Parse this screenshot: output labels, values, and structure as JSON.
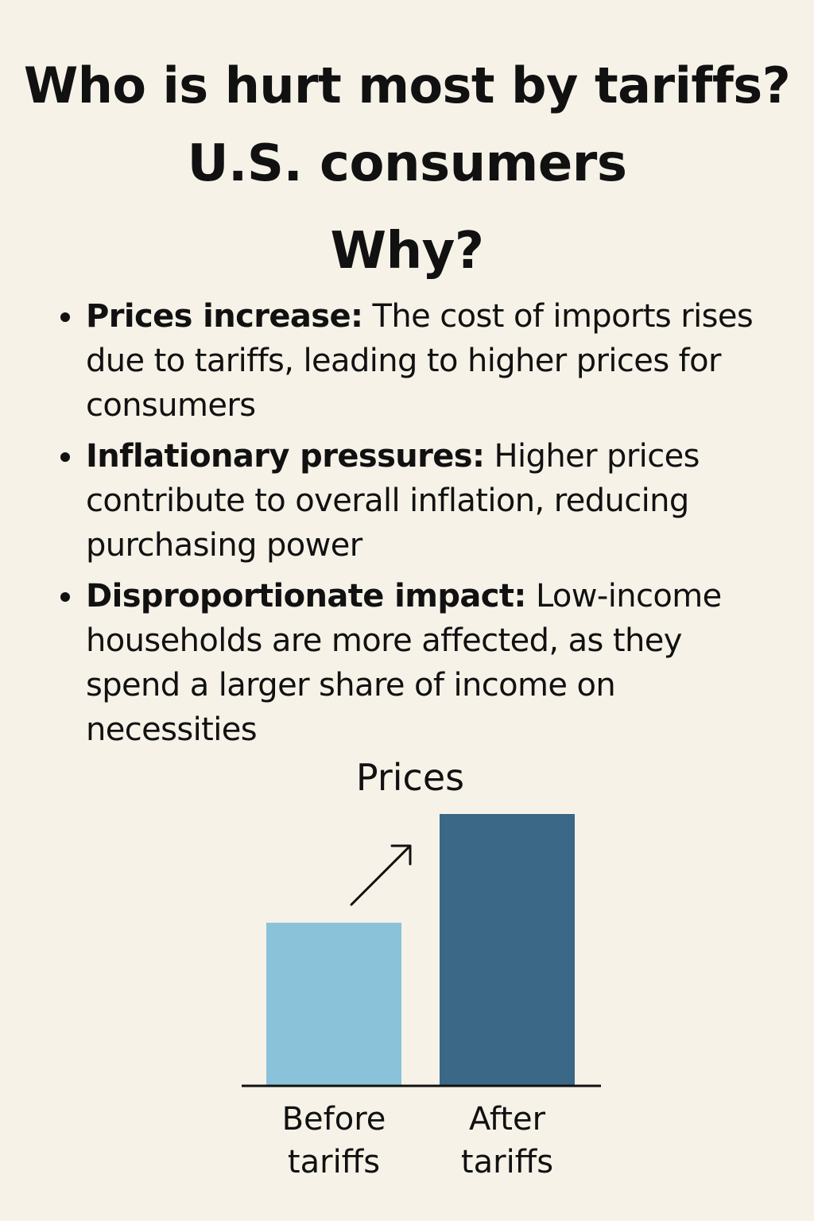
{
  "header": {
    "title": "Who is hurt most by tariffs?",
    "subtitle": "U.S. consumers",
    "why": "Why?"
  },
  "bullets": [
    {
      "heading": "Prices increase:",
      "text": "The cost of imports rises due to tariffs, leading to higher prices for consumers"
    },
    {
      "heading": "Inflationary pressures:",
      "text": "Higher prices contribute to overall inflation, reducing purchasing power"
    },
    {
      "heading": "Disproportionate impact:",
      "text": "Low-income households are more affected, as they spend a larger share of income on necessities"
    }
  ],
  "colors": {
    "background": "#f6f2e8",
    "before_bar": "#89c2d9",
    "after_bar": "#3a6886",
    "text": "#111111"
  },
  "chart_data": {
    "type": "bar",
    "title": "Prices",
    "categories": [
      "Before tariffs",
      "After tariffs"
    ],
    "category_lines": [
      [
        "Before",
        "tariffs"
      ],
      [
        "After",
        "tariffs"
      ]
    ],
    "values": [
      0.6,
      1.0
    ],
    "ylim": [
      0,
      1.0
    ],
    "xlabel": "",
    "ylabel": "",
    "annotation": "upward-arrow-icon",
    "grid": false
  }
}
